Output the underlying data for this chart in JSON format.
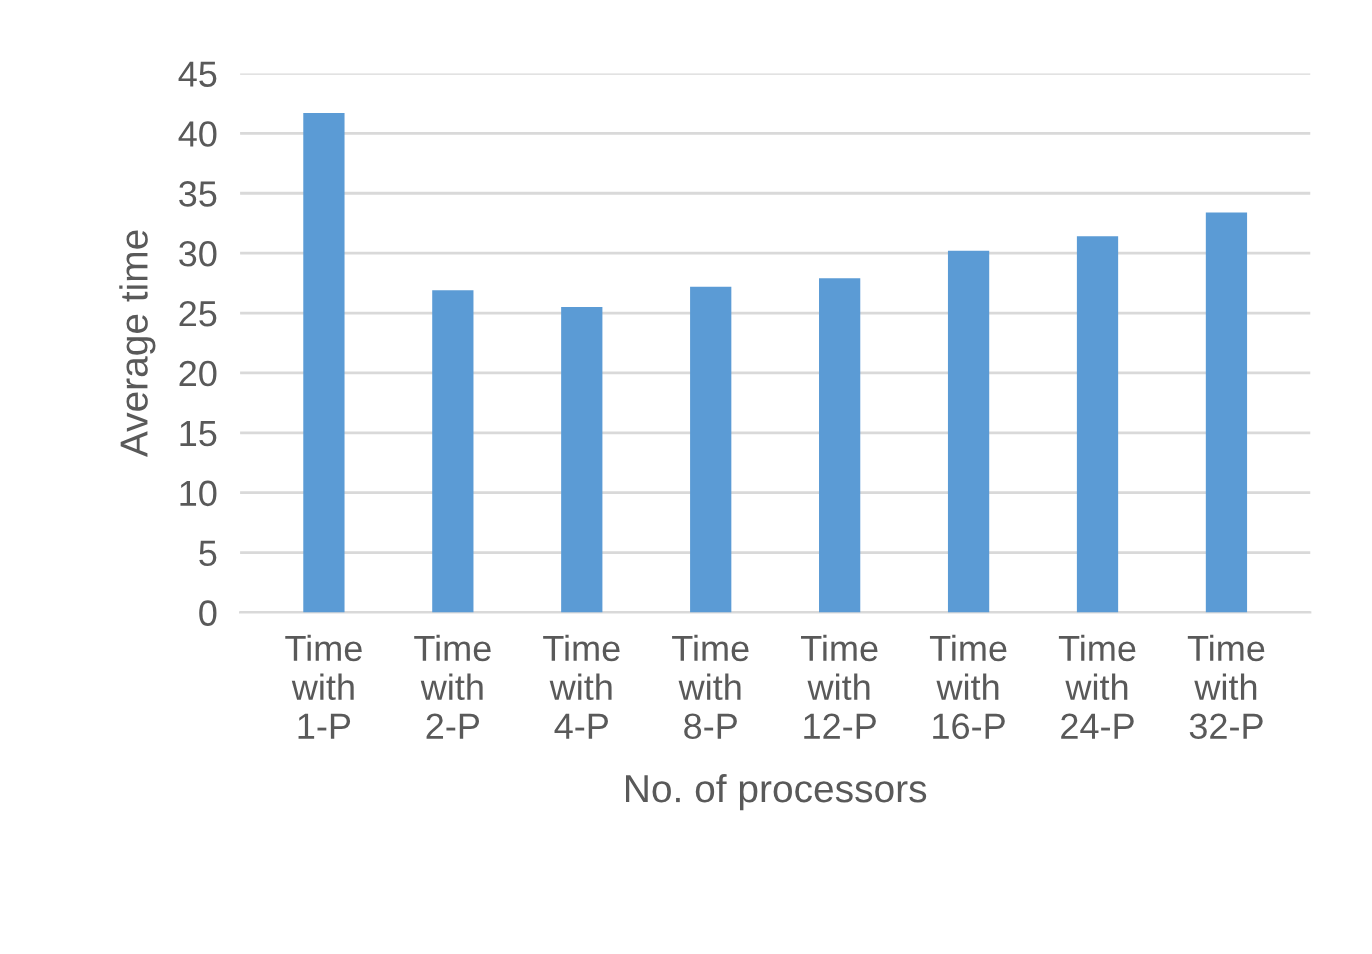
{
  "chart_data": {
    "type": "bar",
    "xlabel": "No. of processors",
    "ylabel": "Average time",
    "categories": [
      "Time\nwith\n1-P",
      "Time\nwith\n2-P",
      "Time\nwith\n4-P",
      "Time\nwith\n8-P",
      "Time\nwith\n12-P",
      "Time\nwith\n16-P",
      "Time\nwith\n24-P",
      "Time\nwith\n32-P"
    ],
    "values": [
      41.7,
      26.9,
      25.5,
      27.2,
      27.9,
      30.2,
      31.4,
      33.4
    ],
    "color": "#5b9bd5",
    "ylim": [
      0,
      45
    ],
    "yticks": [
      0,
      5,
      10,
      15,
      20,
      25,
      30,
      35,
      40,
      45
    ],
    "grid": "y"
  }
}
